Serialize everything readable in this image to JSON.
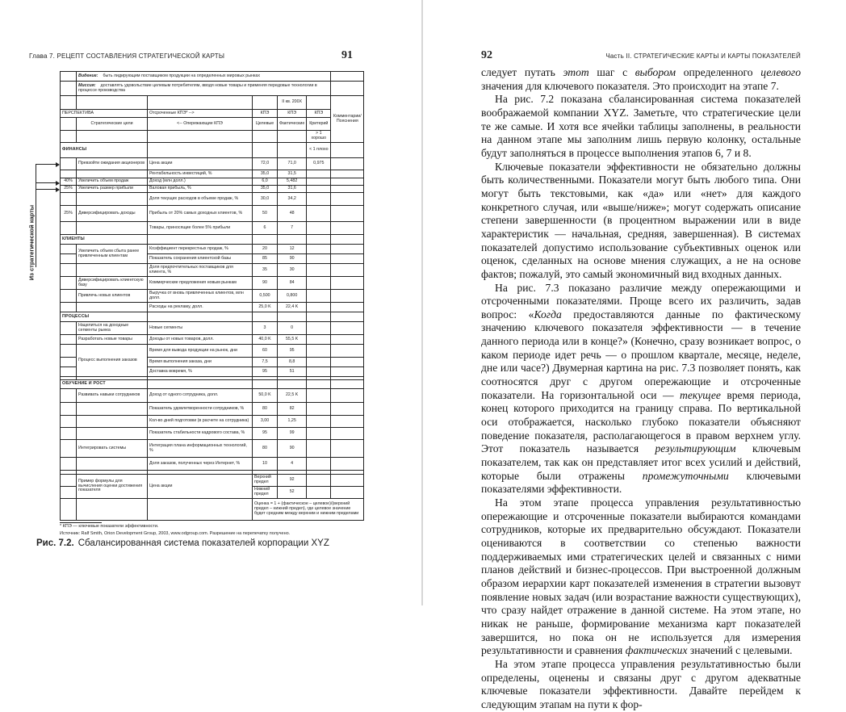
{
  "left_page": {
    "running_head": "Глава 7. РЕЦЕПТ СОСТАВЛЕНИЯ СТРАТЕГИЧЕСКОЙ КАРТЫ",
    "page_number": "91",
    "side_label": "Из стратегической карты",
    "table": {
      "header_rows": [
        [
          "",
          {
            "label": "Видение:",
            "t": "быть лидирующим поставщиком продукции на определенных мировых рынках",
            "cs": 5,
            "cls": "vm"
          },
          ""
        ],
        [
          "",
          {
            "label": "Миссия:",
            "t": "доставлять удовольствие целевым потребителям, вводя новые товары и применяя передовые технологии в процессе производства",
            "cs": 5,
            "cls": "vm"
          },
          ""
        ],
        [
          "",
          "",
          "",
          "",
          {
            "t": "II кв. 200X",
            "cls": "c"
          },
          "",
          {
            "t": "Комментарии/ Пояснения",
            "rs": 4,
            "cls": "c"
          }
        ],
        [
          {
            "t": "ПЕРСПЕКТИВА",
            "cs": 2
          },
          "Отсроченные КПЭ* -->",
          {
            "t": "КПЭ",
            "cls": "c"
          },
          {
            "t": "КПЭ",
            "cls": "c"
          },
          {
            "t": "КПЭ",
            "cls": "c"
          }
        ],
        [
          "",
          {
            "t": "Стратегические цели",
            "cls": "c"
          },
          {
            "t": "<-- Опережающие КПЭ",
            "cls": "c"
          },
          {
            "t": "Целевые",
            "cls": "c"
          },
          {
            "t": "Фактические",
            "cls": "c"
          },
          {
            "t": "Критерий",
            "cls": "c"
          }
        ],
        [
          "",
          "",
          "",
          "",
          "",
          {
            "t": "> 1 хорошо",
            "cls": "c"
          }
        ]
      ],
      "body_rows": [
        [
          {
            "t": "ФИНАНСЫ",
            "cs": 2,
            "cls": "sec"
          },
          "",
          "",
          "",
          {
            "t": "< 1 плохо",
            "cls": "c"
          },
          ""
        ],
        [
          "",
          "Превзойти ожидания акционеров",
          "Цена акции",
          "72,0",
          "71,0",
          "0,975",
          ""
        ],
        [
          "",
          "",
          "Рентабельность инвестиций, %",
          "35,0",
          "31,5",
          "",
          ""
        ],
        [
          "40%",
          "Увеличить объем продаж",
          "Доход (млн долл.)",
          "6,0",
          "5,482",
          "",
          ""
        ],
        [
          "25%",
          "Увеличить размер прибыли",
          "Валовая прибыль, %",
          "35,0",
          "31,6",
          "",
          ""
        ],
        [
          "",
          "",
          "Доля текущих расходов в объеме продаж, %",
          "30,0",
          "34,2",
          "",
          ""
        ],
        [
          "25%",
          "Диверсифицировать доходы",
          "Прибыль от 20% самых доходных клиентов, %",
          "50",
          "48",
          "",
          ""
        ],
        [
          "",
          "",
          "Товары, приносящие более 5% прибыли",
          "6",
          "7",
          "",
          ""
        ],
        [
          {
            "t": "КЛИЕНТЫ",
            "cs": 2,
            "cls": "sec"
          },
          "",
          "",
          "",
          "",
          ""
        ],
        [
          "",
          {
            "t": "Увеличить объем сбыта ранее привлеченным клиентам",
            "rs": 2
          },
          "Коэффициент перекрестных продаж, %",
          "20",
          "12",
          "",
          ""
        ],
        [
          "",
          "Показатель сохранения клиентской базы",
          "85",
          "90",
          "",
          ""
        ],
        [
          "",
          "",
          "Доля предпочтительных поставщиков для клиента, %",
          "35",
          "30",
          "",
          ""
        ],
        [
          "",
          "Диверсифицировать клиентскую базу",
          "Коммерческие предложения новым рынкам",
          "90",
          "84",
          "",
          ""
        ],
        [
          "",
          "Привлечь новых клиентов",
          "Выручка от вновь привлеченных клиентов, млн долл.",
          "0,500",
          "0,800",
          "",
          ""
        ],
        [
          "",
          "",
          "Расходы на рекламу, долл.",
          "25,0 K",
          "22,4 K",
          "",
          ""
        ],
        [
          {
            "t": "ПРОЦЕССЫ",
            "cs": 2,
            "cls": "sec"
          },
          "",
          "",
          "",
          "",
          ""
        ],
        [
          "",
          "Нацелиться на доходные сегменты рынка",
          "Новые сегменты",
          "3",
          "0",
          "",
          ""
        ],
        [
          "",
          "Разработать новые товары",
          "Доходы от новых товаров, долл.",
          "40,0 K",
          "55,5 K",
          "",
          ""
        ],
        [
          "",
          {
            "t": "Процесс выполнения заказов",
            "rs": 3
          },
          "Время для вывода продукции на рынок, дни",
          "60",
          "95",
          "",
          ""
        ],
        [
          "",
          "Время выполнения заказа, дни",
          "7,5",
          "8,8",
          "",
          ""
        ],
        [
          "",
          "Доставка вовремя, %",
          "95",
          "51",
          "",
          ""
        ],
        [
          "",
          "",
          "",
          "",
          "",
          "",
          ""
        ],
        [
          {
            "t": "ОБУЧЕНИЕ И РОСТ",
            "cs": 2,
            "cls": "sec"
          },
          "",
          "",
          "",
          "",
          ""
        ],
        [
          "",
          "Развивать навыки сотрудников",
          "Доход от одного сотрудника, долл.",
          "50,0 K",
          "22,5 K",
          "",
          ""
        ],
        [
          "",
          "",
          "Показатель удовлетворенности сотрудников, %",
          "80",
          "82",
          "",
          ""
        ],
        [
          "",
          "",
          "Кол-во дней подготовки (в расчете на сотрудника)",
          "3,00",
          "1,25",
          "",
          ""
        ],
        [
          "",
          "",
          "Показатель стабильности кадрового состава, %",
          "95",
          "99",
          "",
          ""
        ],
        [
          "",
          "Интегрировать системы",
          "Интеграция плана информационных технологий, %",
          "80",
          "90",
          "",
          ""
        ],
        [
          "",
          "",
          "Доля заказов, полученных через Интернет, %",
          "10",
          "4",
          "",
          ""
        ],
        [
          "",
          "",
          "",
          "",
          "",
          "",
          ""
        ],
        [
          "",
          {
            "t": "Пример формулы для вычисления оценки достижения показателя",
            "rs": 2
          },
          {
            "t": "Цена акции",
            "rs": 2
          },
          "Верхний предел",
          "92",
          "",
          ""
        ],
        [
          "",
          "Нижний предел",
          "52",
          "",
          ""
        ],
        [
          "",
          "",
          "",
          {
            "t": "Оценка = 1 + (фактическое – целевое)/(верхний предел – нижний предел), где целевое значение будет средним между верхним и нижним пределами",
            "cs": 4
          }
        ]
      ]
    },
    "footnote": "* КПЭ — ключевые показатели эффективности.",
    "source": "Источник: Ralf Smith, Orion Development Group, 2003, www.odgroup.com. Разрешение на перепечатку получено.",
    "caption_label": "Рис. 7.2.",
    "caption_text": "Сбалансированная система показателей корпорации XYZ"
  },
  "right_page": {
    "page_number": "92",
    "running_head": "Часть II. СТРАТЕГИЧЕСКИЕ КАРТЫ И КАРТЫ ПОКАЗАТЕЛЕЙ",
    "paragraphs": [
      [
        {
          "t": "следует путать "
        },
        {
          "t": "этот",
          "i": true
        },
        {
          "t": " шаг с "
        },
        {
          "t": "выбором",
          "i": true
        },
        {
          "t": " определенного "
        },
        {
          "t": "целевого",
          "i": true
        },
        {
          "t": " значения для ключевого показателя. Это происходит на этапе 7."
        }
      ],
      [
        {
          "t": "На рис. 7.2 показана сбалансированная система показателей воображаемой компании XYZ. Заметьте, что стратегические цели те же самые. И хотя все ячейки таблицы заполнены, в реальности на данном этапе мы заполним лишь первую колонку, остальные будут заполняться в процессе выполнения этапов 6, 7 и 8."
        }
      ],
      [
        {
          "t": "Ключевые показатели эффективности не обязательно должны быть количественными. Показатели могут быть любого типа. Они могут быть текстовыми, как «да» или «нет» для каждого конкретного случая, или «выше/ниже»; могут содержать описание степени завершенности (в процентном выражении или в виде характеристик — начальная, средняя, завершенная). В системах показателей допустимо использование субъективных оценок или оценок, сделанных на основе мнения служащих, а не на основе фактов; пожалуй, это самый экономичный вид входных данных."
        }
      ],
      [
        {
          "t": "На рис. 7.3 показано различие между опережающими и отсроченными показателями. Проще всего их различить, задав вопрос: «"
        },
        {
          "t": "Когда",
          "i": true
        },
        {
          "t": " предоставляются данные по фактическому значению ключевого показателя эффективности — в течение данного периода или в конце?» (Конечно, сразу возникает вопрос, о каком периоде идет речь — о прошлом квартале, месяце, неделе, дне или часе?) Двумерная картина на рис. 7.3 позволяет понять, как соотносятся друг с другом опережающие и отсроченные показатели. На горизонтальной оси — "
        },
        {
          "t": "текущее",
          "i": true
        },
        {
          "t": " время периода, конец которого приходится на границу справа. По вертикальной оси отображается, насколько глубоко показатели объясняют поведение показателя, располагающегося в правом верхнем углу. Этот показатель называется "
        },
        {
          "t": "результирующим",
          "i": true
        },
        {
          "t": " ключевым показателем, так как он представляет итог всех усилий и действий, которые были отражены "
        },
        {
          "t": "промежуточными",
          "i": true
        },
        {
          "t": " ключевыми показателями эффективности."
        }
      ],
      [
        {
          "t": "На этом этапе процесса управления результативностью опережающие и отсроченные показатели выбираются командами сотрудников, которые их предварительно обсуждают. Показатели оцениваются в соответствии со степенью важности поддерживаемых ими стратегических целей и связанных с ними планов действий и бизнес-процессов. При выстроенной должным образом иерархии карт показателей изменения в стратегии вызовут появление новых задач (или возрастание важности существующих), что сразу найдет отражение в данной системе. На этом этапе, но никак не раньше, формирование механизма карт показателей завершится, но пока он не используется для измерения результативности и сравнения "
        },
        {
          "t": "фактических",
          "i": true
        },
        {
          "t": " значений с целевыми."
        }
      ],
      [
        {
          "t": "На этом этапе процесса управления результативностью были определены, оценены и связаны друг с другом адекватные ключевые показатели эффективности. Давайте перейдем к следующим этапам на пути к фор-"
        }
      ]
    ]
  }
}
